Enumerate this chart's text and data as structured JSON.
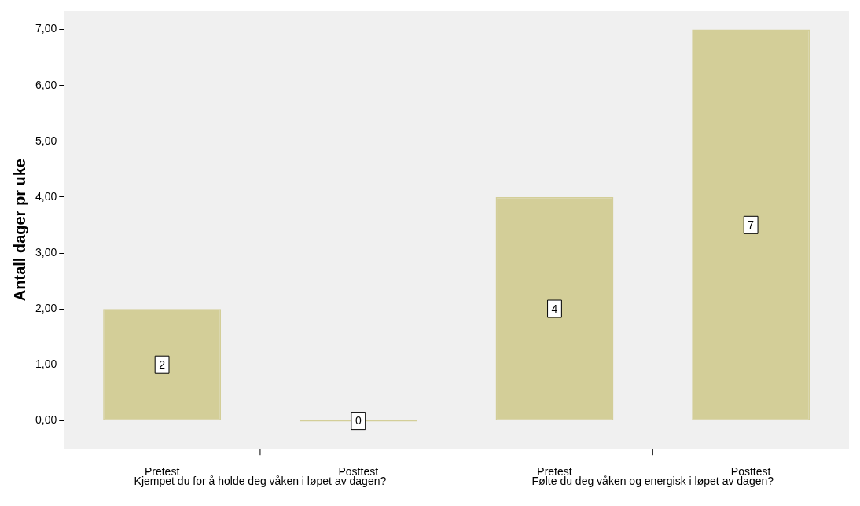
{
  "chart_data": {
    "type": "bar",
    "ylabel": "Antall dager pr uke",
    "categories": [
      "Pretest",
      "Posttest",
      "Pretest",
      "Posttest"
    ],
    "values": [
      2,
      0,
      4,
      7
    ],
    "colors": [
      "#d3ce98",
      "#d3ce98",
      "#d3ce98",
      "#d3ce98"
    ],
    "annotations": [
      "Kjempet du for å holde deg våken i løpet av dagen?",
      "Følte du deg våken og energisk i løpet av dagen?"
    ],
    "ylim": [
      -0.5,
      7.33
    ],
    "yticks": [
      {
        "value": 0,
        "label": "0,00"
      },
      {
        "value": 1,
        "label": "1,00"
      },
      {
        "value": 2,
        "label": "2,00"
      },
      {
        "value": 3,
        "label": "3,00"
      },
      {
        "value": 4,
        "label": "4,00"
      },
      {
        "value": 5,
        "label": "5,00"
      },
      {
        "value": 6,
        "label": "6,00"
      },
      {
        "value": 7,
        "label": "7,00"
      }
    ],
    "data_labels": true,
    "grid": false,
    "legend": false
  }
}
